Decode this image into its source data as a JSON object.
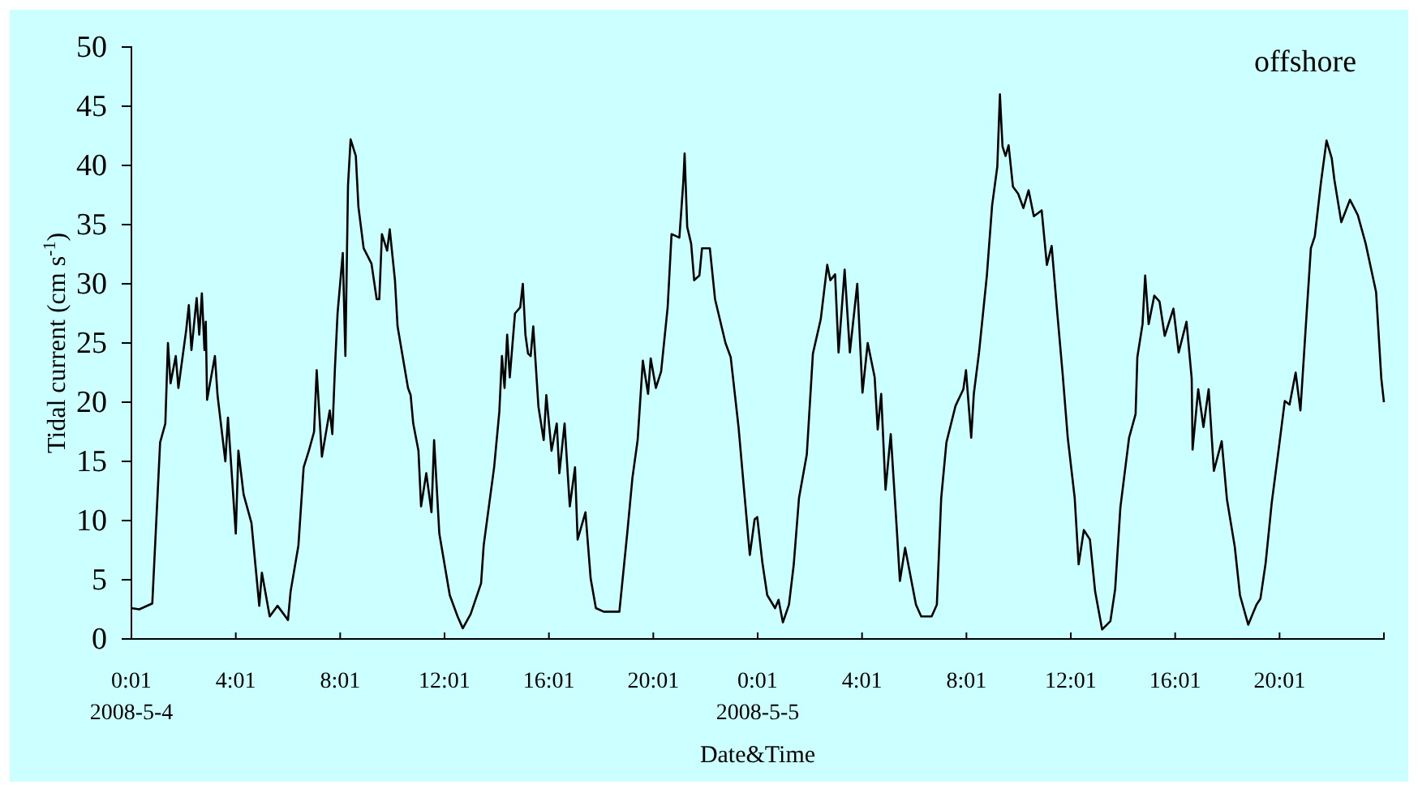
{
  "chart_data": {
    "type": "line",
    "xlabel": "Date&Time",
    "ylabel": "Tidal current (cm s$^{-1}$)",
    "annotations": [
      "offshore"
    ],
    "xlim": [
      "2008-05-04T00:01",
      "2008-05-06T00:01"
    ],
    "ylim": [
      0,
      50
    ],
    "xticks": [
      {
        "value": "2008-05-04T00:01",
        "label": "0:01\n2008-5-4"
      },
      {
        "value": "2008-05-04T04:01",
        "label": "4:01"
      },
      {
        "value": "2008-05-04T08:01",
        "label": "8:01"
      },
      {
        "value": "2008-05-04T12:01",
        "label": "12:01"
      },
      {
        "value": "2008-05-04T16:01",
        "label": "16:01"
      },
      {
        "value": "2008-05-04T20:01",
        "label": "20:01"
      },
      {
        "value": "2008-05-05T00:01",
        "label": "0:01\n2008-5-5"
      },
      {
        "value": "2008-05-05T04:01",
        "label": "4:01"
      },
      {
        "value": "2008-05-05T08:01",
        "label": "8:01"
      },
      {
        "value": "2008-05-05T12:01",
        "label": "12:01"
      },
      {
        "value": "2008-05-05T16:01",
        "label": "16:01"
      },
      {
        "value": "2008-05-05T20:01",
        "label": "20:01"
      }
    ],
    "yticks": [
      0,
      5,
      10,
      15,
      20,
      25,
      30,
      35,
      40,
      45,
      50
    ],
    "grid": false,
    "marker": "none",
    "line_style": "solid",
    "series": [
      {
        "color": "#000000",
        "x": [
          "2008-05-04T00:01",
          "2008-05-04T00:19",
          "2008-05-04T00:49",
          "2008-05-04T01:07",
          "2008-05-04T01:19",
          "2008-05-04T01:25",
          "2008-05-04T01:31",
          "2008-05-04T01:43",
          "2008-05-04T01:49",
          "2008-05-04T02:07",
          "2008-05-04T02:13",
          "2008-05-04T02:19",
          "2008-05-04T02:31",
          "2008-05-04T02:37",
          "2008-05-04T02:43",
          "2008-05-04T02:49",
          "2008-05-04T02:52",
          "2008-05-04T02:55",
          "2008-05-04T03:13",
          "2008-05-04T03:19",
          "2008-05-04T03:37",
          "2008-05-04T03:43",
          "2008-05-04T04:01",
          "2008-05-04T04:07",
          "2008-05-04T04:19",
          "2008-05-04T04:37",
          "2008-05-04T04:55",
          "2008-05-04T05:01",
          "2008-05-04T05:19",
          "2008-05-04T05:37",
          "2008-05-04T06:01",
          "2008-05-04T06:07",
          "2008-05-04T06:25",
          "2008-05-04T06:37",
          "2008-05-04T06:49",
          "2008-05-04T07:01",
          "2008-05-04T07:07",
          "2008-05-04T07:19",
          "2008-05-04T07:37",
          "2008-05-04T07:43",
          "2008-05-04T07:49",
          "2008-05-04T07:55",
          "2008-05-04T08:07",
          "2008-05-04T08:13",
          "2008-05-04T08:19",
          "2008-05-04T08:25",
          "2008-05-04T08:37",
          "2008-05-04T08:43",
          "2008-05-04T08:55",
          "2008-05-04T09:13",
          "2008-05-04T09:25",
          "2008-05-04T09:31",
          "2008-05-04T09:37",
          "2008-05-04T09:49",
          "2008-05-04T09:55",
          "2008-05-04T10:07",
          "2008-05-04T10:13",
          "2008-05-04T10:37",
          "2008-05-04T10:43",
          "2008-05-04T10:49",
          "2008-05-04T11:01",
          "2008-05-04T11:07",
          "2008-05-04T11:19",
          "2008-05-04T11:31",
          "2008-05-04T11:37",
          "2008-05-04T11:49",
          "2008-05-04T12:13",
          "2008-05-04T12:31",
          "2008-05-04T12:43",
          "2008-05-04T13:01",
          "2008-05-04T13:25",
          "2008-05-04T13:31",
          "2008-05-04T13:55",
          "2008-05-04T14:07",
          "2008-05-04T14:13",
          "2008-05-04T14:19",
          "2008-05-04T14:25",
          "2008-05-04T14:31",
          "2008-05-04T14:43",
          "2008-05-04T14:55",
          "2008-05-04T15:01",
          "2008-05-04T15:07",
          "2008-05-04T15:13",
          "2008-05-04T15:19",
          "2008-05-04T15:25",
          "2008-05-04T15:37",
          "2008-05-04T15:49",
          "2008-05-04T15:55",
          "2008-05-04T16:07",
          "2008-05-04T16:19",
          "2008-05-04T16:25",
          "2008-05-04T16:37",
          "2008-05-04T16:49",
          "2008-05-04T17:01",
          "2008-05-04T17:07",
          "2008-05-04T17:25",
          "2008-05-04T17:37",
          "2008-05-04T17:49",
          "2008-05-04T18:07",
          "2008-05-04T18:43",
          "2008-05-04T19:01",
          "2008-05-04T19:13",
          "2008-05-04T19:25",
          "2008-05-04T19:37",
          "2008-05-04T19:49",
          "2008-05-04T19:55",
          "2008-05-04T20:07",
          "2008-05-04T20:19",
          "2008-05-04T20:34",
          "2008-05-04T20:43",
          "2008-05-04T21:01",
          "2008-05-04T21:10",
          "2008-05-04T21:13",
          "2008-05-04T21:19",
          "2008-05-04T21:28",
          "2008-05-04T21:35",
          "2008-05-04T21:47",
          "2008-05-04T21:53",
          "2008-05-04T22:11",
          "2008-05-04T22:23",
          "2008-05-04T22:47",
          "2008-05-04T22:59",
          "2008-05-04T23:17",
          "2008-05-04T23:28",
          "2008-05-04T23:43",
          "2008-05-04T23:54",
          "2008-05-05T00:00",
          "2008-05-05T00:12",
          "2008-05-05T00:23",
          "2008-05-05T00:41",
          "2008-05-05T00:49",
          "2008-05-05T00:59",
          "2008-05-05T01:13",
          "2008-05-05T01:24",
          "2008-05-05T01:36",
          "2008-05-05T01:54",
          "2008-05-05T02:08",
          "2008-05-05T02:26",
          "2008-05-05T02:41",
          "2008-05-05T02:48",
          "2008-05-05T02:59",
          "2008-05-05T03:07",
          "2008-05-05T03:21",
          "2008-05-05T03:33",
          "2008-05-05T03:50",
          "2008-05-05T04:02",
          "2008-05-05T04:14",
          "2008-05-05T04:30",
          "2008-05-05T04:37",
          "2008-05-05T04:45",
          "2008-05-05T04:55",
          "2008-05-05T05:07",
          "2008-05-05T05:21",
          "2008-05-05T05:28",
          "2008-05-05T05:40",
          "2008-05-05T06:05",
          "2008-05-05T06:17",
          "2008-05-05T06:41",
          "2008-05-05T06:53",
          "2008-05-05T07:03",
          "2008-05-05T07:15",
          "2008-05-05T07:36",
          "2008-05-05T07:54",
          "2008-05-05T08:00",
          "2008-05-05T08:12",
          "2008-05-05T08:18",
          "2008-05-05T08:30",
          "2008-05-05T08:48",
          "2008-05-05T09:00",
          "2008-05-05T09:12",
          "2008-05-05T09:18",
          "2008-05-05T09:24",
          "2008-05-05T09:31",
          "2008-05-05T09:38",
          "2008-05-05T09:48",
          "2008-05-05T10:00",
          "2008-05-05T10:12",
          "2008-05-05T10:24",
          "2008-05-05T10:36",
          "2008-05-05T10:54",
          "2008-05-05T11:06",
          "2008-05-05T11:17",
          "2008-05-05T11:30",
          "2008-05-05T11:42",
          "2008-05-05T11:54",
          "2008-05-05T12:10",
          "2008-05-05T12:19",
          "2008-05-05T12:31",
          "2008-05-05T12:45",
          "2008-05-05T12:57",
          "2008-05-05T13:13",
          "2008-05-05T13:32",
          "2008-05-05T13:43",
          "2008-05-05T13:55",
          "2008-05-05T14:15",
          "2008-05-05T14:30",
          "2008-05-05T14:34",
          "2008-05-05T14:46",
          "2008-05-05T14:52",
          "2008-05-05T15:00",
          "2008-05-05T15:13",
          "2008-05-05T15:25",
          "2008-05-05T15:37",
          "2008-05-05T15:57",
          "2008-05-05T16:09",
          "2008-05-05T16:27",
          "2008-05-05T16:39",
          "2008-05-05T16:41",
          "2008-05-05T16:54",
          "2008-05-05T17:06",
          "2008-05-05T17:18",
          "2008-05-05T17:30",
          "2008-05-05T17:48",
          "2008-05-05T18:00",
          "2008-05-05T18:18",
          "2008-05-05T18:30",
          "2008-05-05T18:49",
          "2008-05-05T19:08",
          "2008-05-05T19:17",
          "2008-05-05T19:29",
          "2008-05-05T19:43",
          "2008-05-05T20:01",
          "2008-05-05T20:13",
          "2008-05-05T20:24",
          "2008-05-05T20:38",
          "2008-05-05T20:49",
          "2008-05-05T21:01",
          "2008-05-05T21:13",
          "2008-05-05T21:22",
          "2008-05-05T21:36",
          "2008-05-05T21:49",
          "2008-05-05T22:01",
          "2008-05-05T22:07",
          "2008-05-05T22:23",
          "2008-05-05T22:43",
          "2008-05-05T23:01",
          "2008-05-05T23:19",
          "2008-05-05T23:43",
          "2008-05-05T23:55",
          "2008-05-06T00:01"
        ],
        "values": [
          2.6,
          2.5,
          3,
          16.6,
          18.2,
          25,
          21.6,
          23.9,
          21.2,
          26.1,
          28.2,
          24.4,
          28.8,
          25.7,
          29.2,
          24.4,
          26.8,
          20.2,
          23.9,
          20.6,
          15,
          18.7,
          8.9,
          15.9,
          12.2,
          9.8,
          2.8,
          5.6,
          1.9,
          2.8,
          1.6,
          4,
          7.9,
          14.5,
          15.9,
          17.5,
          22.7,
          15.4,
          19.3,
          17.3,
          22.9,
          27.5,
          32.6,
          23.9,
          38.3,
          42.2,
          40.8,
          36.5,
          33,
          31.7,
          28.7,
          28.7,
          34.2,
          32.8,
          34.6,
          30.3,
          26.4,
          21.2,
          20.6,
          18.2,
          15.9,
          11.2,
          14,
          10.7,
          16.8,
          8.9,
          3.7,
          1.9,
          0.9,
          2.1,
          4.7,
          7.9,
          14.5,
          19.2,
          23.9,
          21.2,
          25.7,
          22.1,
          27.5,
          28,
          30,
          25.7,
          24.1,
          23.9,
          26.4,
          19.6,
          16.8,
          20.6,
          15.9,
          18.2,
          14,
          18.2,
          11.2,
          14.5,
          8.4,
          10.7,
          5.1,
          2.6,
          2.3,
          2.3,
          8.9,
          13.6,
          16.8,
          23.5,
          20.7,
          23.7,
          21.2,
          22.6,
          28,
          34.2,
          33.9,
          38.6,
          41,
          34.8,
          33.4,
          30.3,
          30.7,
          33,
          33,
          28.7,
          25,
          23.8,
          17.9,
          13.3,
          7.1,
          10.1,
          10.3,
          6.4,
          3.7,
          2.6,
          3.3,
          1.4,
          2.9,
          6.3,
          11.9,
          15.6,
          24.1,
          27,
          31.6,
          30.3,
          30.8,
          24.2,
          31.2,
          24.2,
          30,
          20.8,
          25,
          22.1,
          17.7,
          20.7,
          12.6,
          17.3,
          9.2,
          4.9,
          7.7,
          2.9,
          1.9,
          1.9,
          2.9,
          11.9,
          16.6,
          19.7,
          21.1,
          22.7,
          17,
          20.7,
          24.2,
          30.7,
          36.6,
          39.9,
          46,
          41.6,
          40.8,
          41.7,
          38.2,
          37.6,
          36.4,
          37.9,
          35.7,
          36.2,
          31.6,
          33.2,
          27.5,
          22.5,
          17,
          11.9,
          6.3,
          9.2,
          8.4,
          4,
          0.8,
          1.5,
          4.2,
          11.1,
          17,
          19,
          23.8,
          26.6,
          30.7,
          26.6,
          29,
          28.5,
          25.6,
          27.9,
          24.2,
          26.8,
          22,
          16,
          21.1,
          17.9,
          21.1,
          14.2,
          16.7,
          11.8,
          7.8,
          3.7,
          1.2,
          2.9,
          3.4,
          6.4,
          11.5,
          16.6,
          20.1,
          19.8,
          22.5,
          19.3,
          26.2,
          33,
          34,
          38.5,
          42.1,
          40.6,
          38.8,
          35.2,
          37.1,
          35.8,
          33.4,
          29.3,
          22,
          20
        ]
      }
    ]
  }
}
